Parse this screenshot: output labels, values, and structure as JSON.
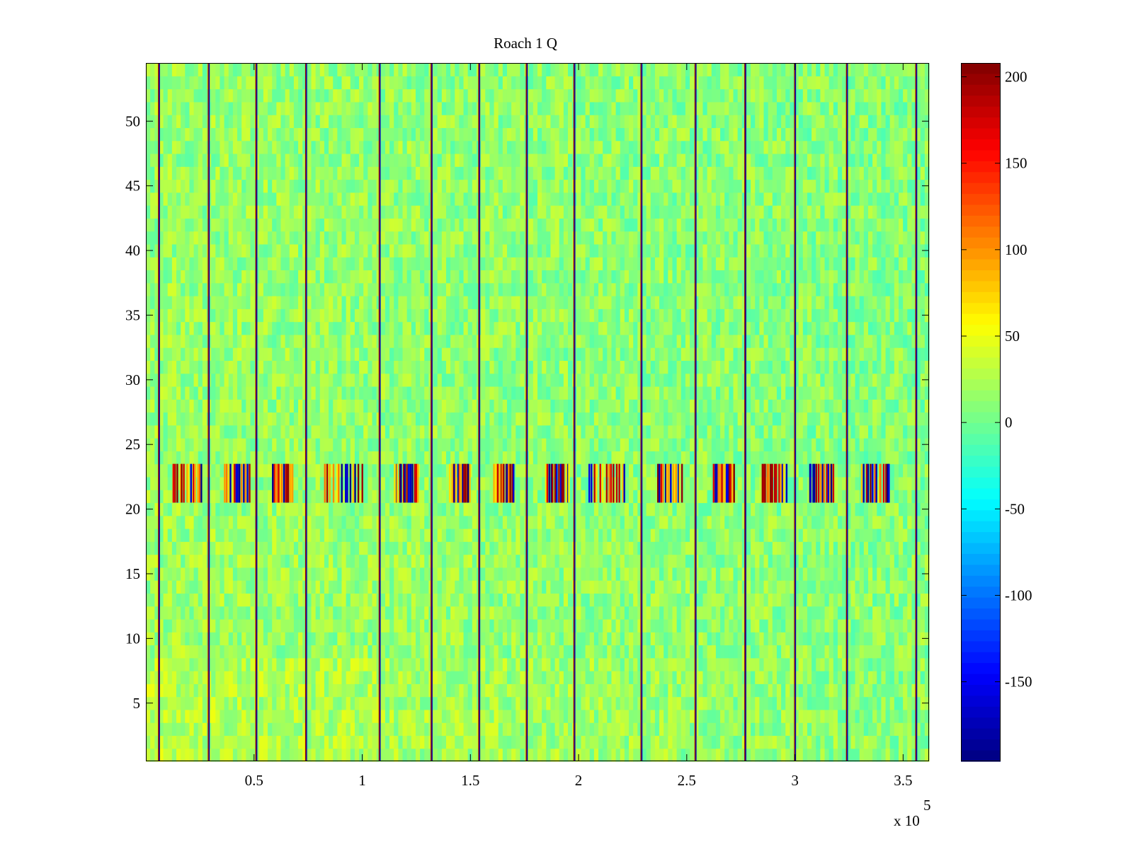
{
  "chart_data": {
    "type": "heatmap",
    "title": "Roach 1 Q",
    "xlabel": "",
    "ylabel": "",
    "x_exponent_label": "x 10",
    "x_exponent_power": "5",
    "xlim": [
      0,
      3.62
    ],
    "ylim": [
      0.5,
      54.5
    ],
    "x_ticks": [
      0.5,
      1,
      1.5,
      2,
      2.5,
      3,
      3.5
    ],
    "x_tick_labels": [
      "0.5",
      "1",
      "1.5",
      "2",
      "2.5",
      "3",
      "3.5"
    ],
    "y_ticks": [
      5,
      10,
      15,
      20,
      25,
      30,
      35,
      40,
      45,
      50
    ],
    "y_tick_labels": [
      "5",
      "10",
      "15",
      "20",
      "25",
      "30",
      "35",
      "40",
      "45",
      "50"
    ],
    "rows": 54,
    "colormap": "jet",
    "clim": [
      -196,
      208
    ],
    "colorbar_ticks": [
      200,
      150,
      100,
      50,
      0,
      -50,
      -100,
      -150
    ],
    "colorbar_tick_labels": [
      "200",
      "150",
      "100",
      "50",
      "0",
      "-50",
      "-100",
      "-150"
    ],
    "background_mean": 10,
    "background_spread": 30,
    "strong_vertical_lines_x": [
      0.06,
      0.29,
      0.51,
      0.74,
      1.08,
      1.32,
      1.54,
      1.76,
      1.98,
      2.29,
      2.54,
      2.77,
      3.0,
      3.24,
      3.56
    ],
    "burst_rows": [
      21,
      22,
      23
    ],
    "burst_segments_x": [
      [
        0.12,
        0.26
      ],
      [
        0.36,
        0.48
      ],
      [
        0.58,
        0.68
      ],
      [
        0.82,
        1.0
      ],
      [
        1.14,
        1.26
      ],
      [
        1.4,
        1.5
      ],
      [
        1.6,
        1.7
      ],
      [
        1.84,
        1.96
      ],
      [
        2.04,
        2.22
      ],
      [
        2.36,
        2.48
      ],
      [
        2.62,
        2.72
      ],
      [
        2.84,
        2.96
      ],
      [
        3.06,
        3.18
      ],
      [
        3.3,
        3.44
      ]
    ]
  }
}
